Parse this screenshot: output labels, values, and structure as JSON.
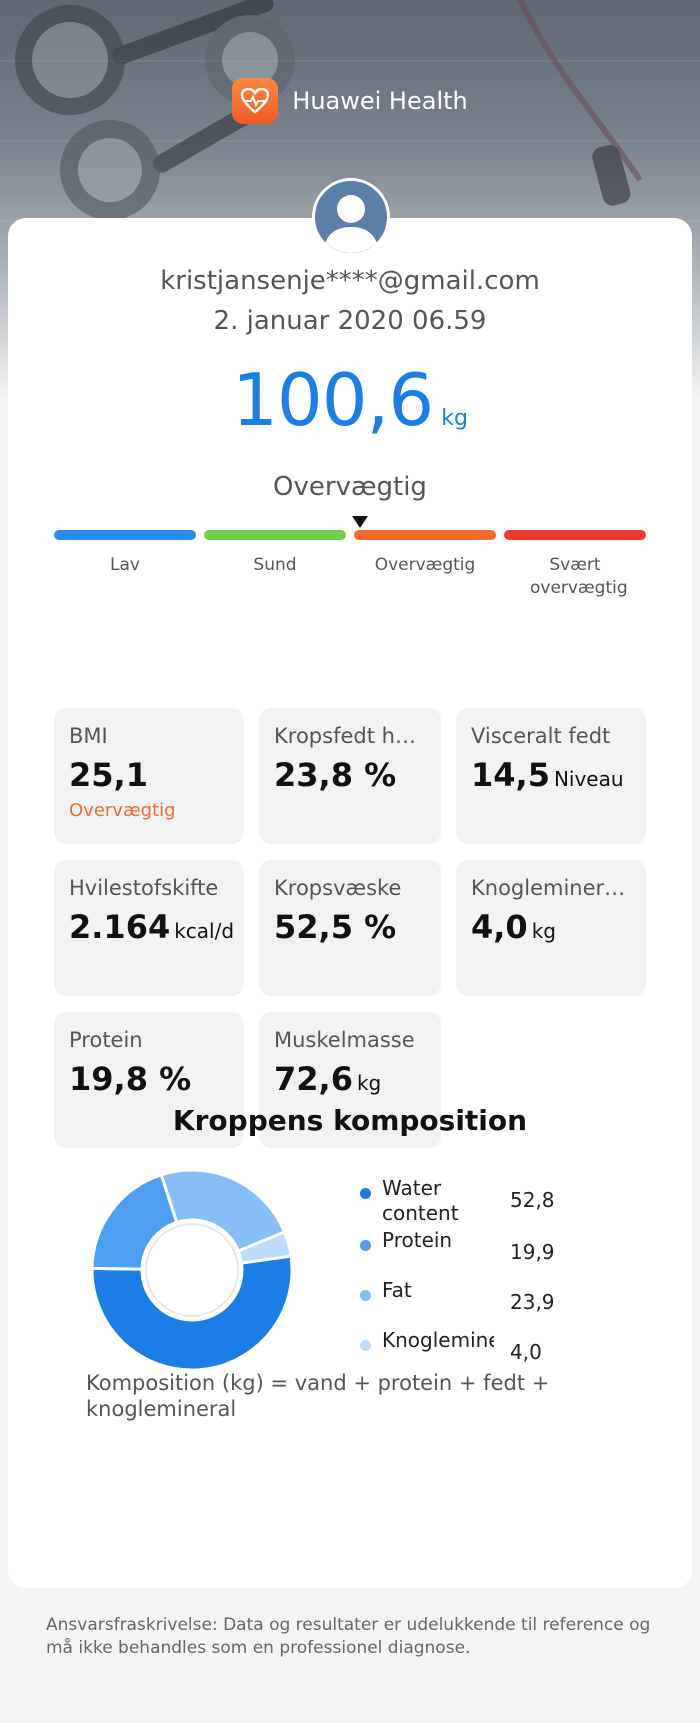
{
  "app": {
    "name": "Huawei Health",
    "icon": "heart-icon"
  },
  "profile": {
    "email": "kristjansenje****@gmail.com",
    "datetime": "2. januar 2020 06.59",
    "avatar": "user-icon"
  },
  "weight": {
    "value": "100,6",
    "unit": "kg",
    "category": "Overvægtig"
  },
  "scale": {
    "segments": [
      {
        "label": "Lav",
        "color": "#2a8cf0"
      },
      {
        "label": "Sund",
        "color": "#6fd14a"
      },
      {
        "label": "Overvægtig",
        "color": "#f26b2e"
      },
      {
        "label": "Svært overvægtig",
        "color": "#f2382a"
      }
    ],
    "active_segment": "Overvægtig"
  },
  "metrics": [
    {
      "label": "BMI",
      "value": "25,1",
      "unit": "",
      "status": "Overvægtig"
    },
    {
      "label": "Kropsfedt ha...",
      "value": "23,8 %",
      "unit": "",
      "status": ""
    },
    {
      "label": "Visceralt fedt",
      "value": "14,5",
      "unit": "Niveau",
      "status": ""
    },
    {
      "label": "Hvilestofskifte",
      "value": "2.164",
      "unit": "kcal/d",
      "status": ""
    },
    {
      "label": "Kropsvæske",
      "value": "52,5 %",
      "unit": "",
      "status": ""
    },
    {
      "label": "Knoglemineral...",
      "value": "4,0",
      "unit": "kg",
      "status": ""
    },
    {
      "label": "Protein",
      "value": "19,8 %",
      "unit": "",
      "status": ""
    },
    {
      "label": "Muskelmasse",
      "value": "72,6",
      "unit": "kg",
      "status": ""
    }
  ],
  "composition": {
    "title": "Kroppens komposition",
    "formula": "Komposition (kg)  = vand + protein + fedt + knoglemineral"
  },
  "chart_data": {
    "type": "pie",
    "title": "Kroppens komposition",
    "series": [
      {
        "name": "Water content",
        "value": 52.8,
        "display": "52,8",
        "color": "#1a7ee6"
      },
      {
        "name": "Protein",
        "value": 19.9,
        "display": "19,9",
        "color": "#4d9ff2"
      },
      {
        "name": "Fat",
        "value": 23.9,
        "display": "23,9",
        "color": "#86bff7"
      },
      {
        "name": "Knoglemineralindhold",
        "value": 4.0,
        "display": "4,0",
        "color": "#bcdcfb"
      }
    ]
  },
  "disclaimer": "Ansvarsfraskrivelse: Data og resultater er udelukkende til reference og må ikke behandles som en professionel diagnose."
}
